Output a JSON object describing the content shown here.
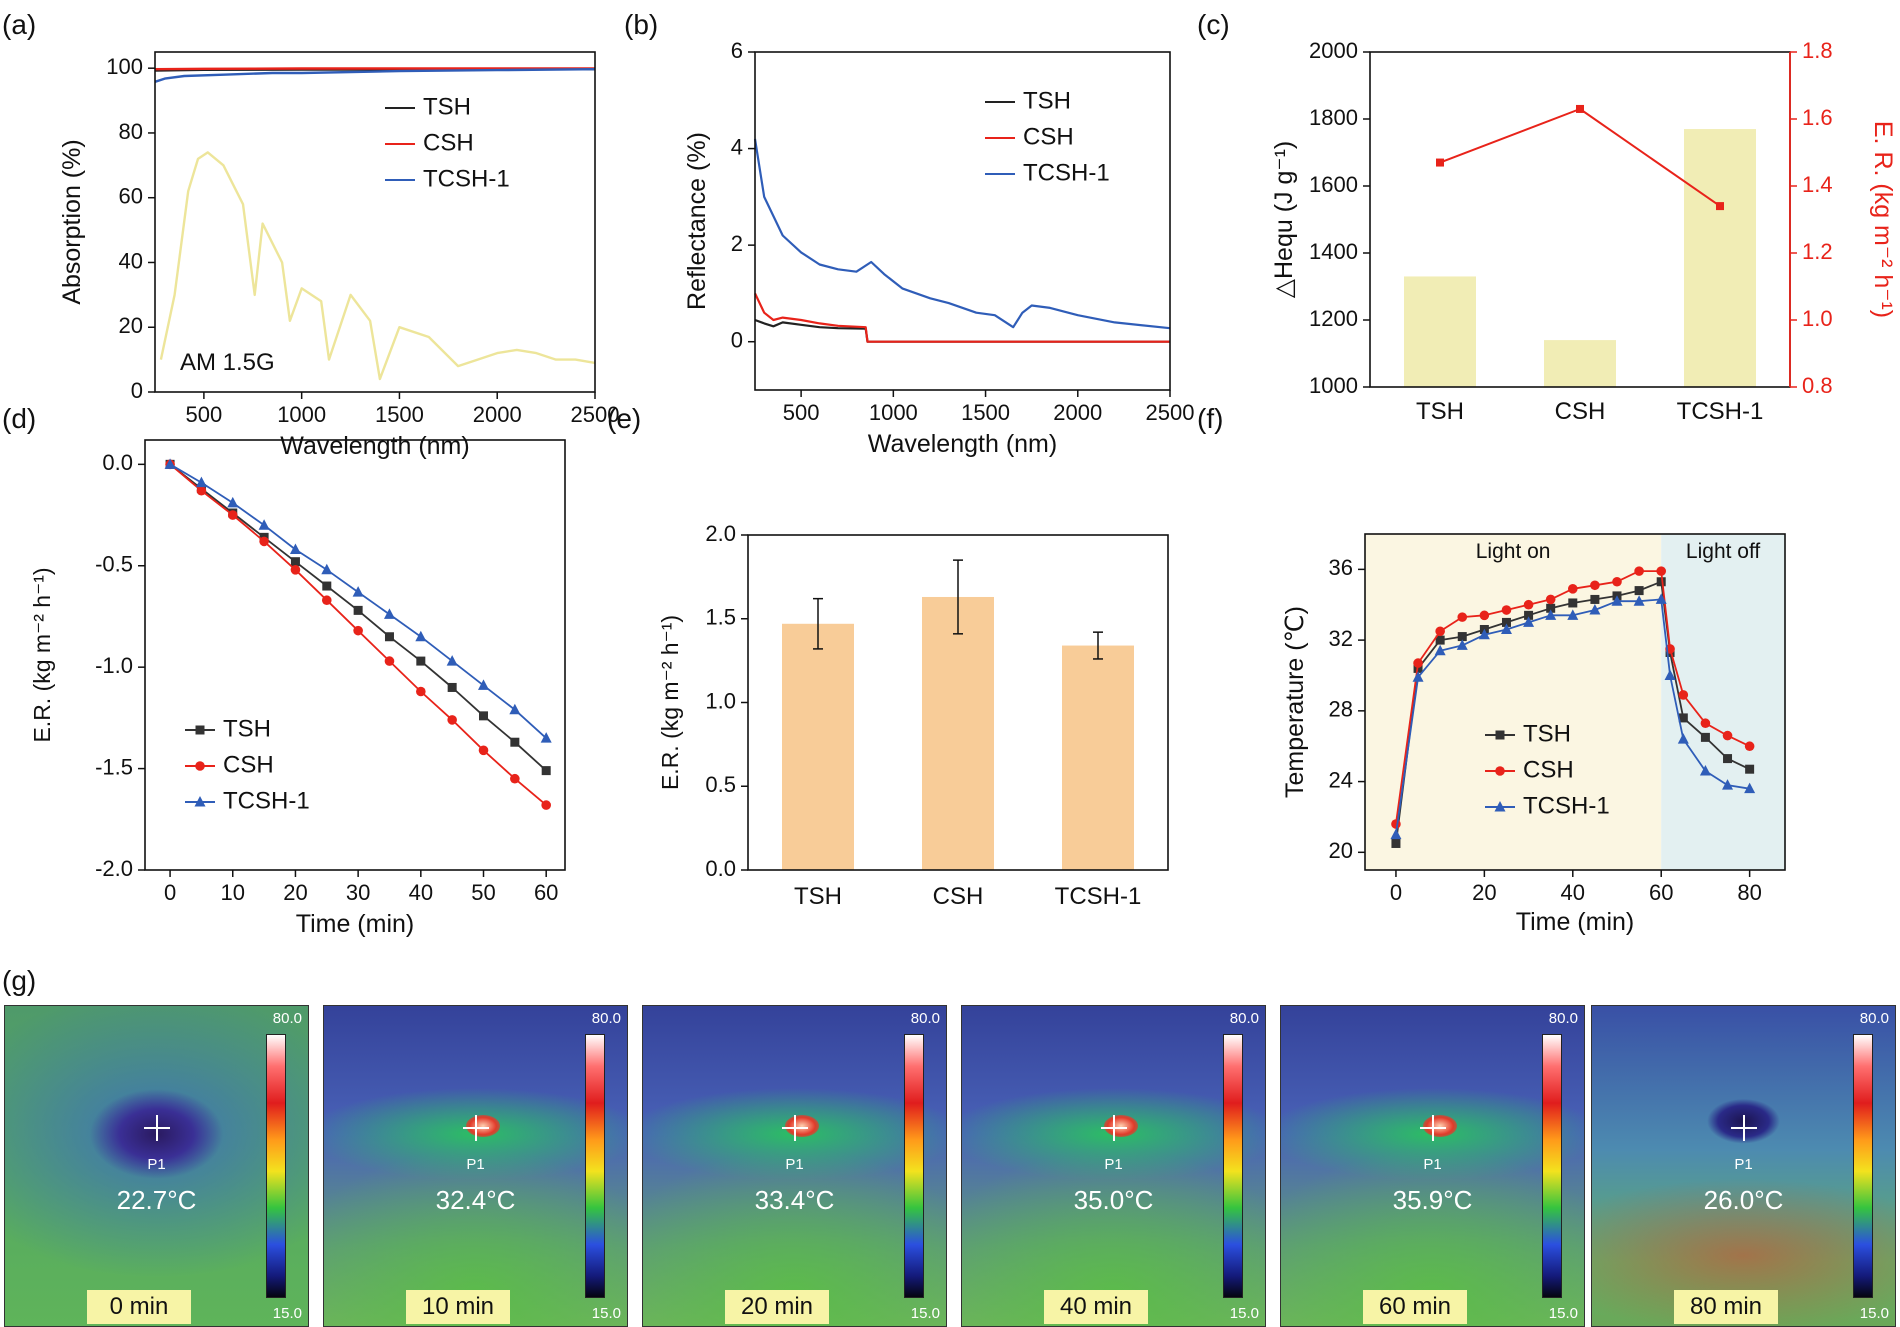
{
  "panel_labels": [
    "(a)",
    "(b)",
    "(c)",
    "(d)",
    "(e)",
    "(f)",
    "(g)"
  ],
  "chart_data": [
    {
      "panel": "(a)",
      "type": "line",
      "xlabel": "Wavelength (nm)",
      "ylabel": "Absorption (%)",
      "xlim": [
        250,
        2500
      ],
      "ylim": [
        0,
        105
      ],
      "xticks": [
        "500",
        "1000",
        "1500",
        "2000",
        "2500"
      ],
      "yticks": [
        "0",
        "20",
        "40",
        "60",
        "80",
        "100"
      ],
      "annotation": "AM 1.5G",
      "legend": [
        "TSH",
        "CSH",
        "TCSH-1"
      ],
      "series": [
        {
          "name": "TSH",
          "color": "#222222",
          "x": [
            250,
            500,
            1000,
            1500,
            2000,
            2500
          ],
          "y": [
            99.3,
            99.5,
            99.6,
            99.6,
            99.7,
            99.7
          ]
        },
        {
          "name": "CSH",
          "color": "#e8231a",
          "x": [
            250,
            500,
            1000,
            1500,
            2000,
            2500
          ],
          "y": [
            99.7,
            99.8,
            99.9,
            99.9,
            99.9,
            99.9
          ]
        },
        {
          "name": "TCSH-1",
          "color": "#2f5db8",
          "x": [
            250,
            300,
            400,
            600,
            850,
            1000,
            1500,
            2000,
            2500
          ],
          "y": [
            95.8,
            96.8,
            97.6,
            98.0,
            98.5,
            98.5,
            99.1,
            99.4,
            99.7
          ]
        },
        {
          "name": "AM 1.5G",
          "color": "#ede59a",
          "x": [
            280,
            350,
            420,
            470,
            520,
            600,
            700,
            760,
            800,
            900,
            940,
            1000,
            1100,
            1140,
            1250,
            1350,
            1400,
            1500,
            1650,
            1800,
            1900,
            2000,
            2100,
            2200,
            2300,
            2400,
            2500
          ],
          "y": [
            10,
            30,
            62,
            72,
            74,
            70,
            58,
            30,
            52,
            40,
            22,
            32,
            28,
            10,
            30,
            22,
            4,
            20,
            17,
            8,
            10,
            12,
            13,
            12,
            10,
            10,
            9
          ]
        }
      ]
    },
    {
      "panel": "(b)",
      "type": "line",
      "xlabel": "Wavelength (nm)",
      "ylabel": "Reflectance (%)",
      "xlim": [
        250,
        2500
      ],
      "ylim": [
        -1,
        6
      ],
      "xticks": [
        "500",
        "1000",
        "1500",
        "2000",
        "2500"
      ],
      "yticks": [
        "0",
        "2",
        "4",
        "6"
      ],
      "legend": [
        "TSH",
        "CSH",
        "TCSH-1"
      ],
      "series": [
        {
          "name": "TSH",
          "color": "#222222",
          "x": [
            250,
            300,
            350,
            400,
            500,
            600,
            700,
            850,
            860,
            1000,
            2500
          ],
          "y": [
            0.45,
            0.38,
            0.32,
            0.4,
            0.35,
            0.3,
            0.28,
            0.27,
            0.0,
            0.0,
            0.0
          ]
        },
        {
          "name": "CSH",
          "color": "#e8231a",
          "x": [
            250,
            300,
            350,
            400,
            500,
            600,
            700,
            850,
            860,
            1000,
            2500
          ],
          "y": [
            1.0,
            0.6,
            0.45,
            0.5,
            0.45,
            0.38,
            0.33,
            0.3,
            0.0,
            0.0,
            0.0
          ]
        },
        {
          "name": "TCSH-1",
          "color": "#2f5db8",
          "x": [
            250,
            300,
            400,
            500,
            600,
            700,
            800,
            880,
            950,
            1050,
            1200,
            1300,
            1450,
            1550,
            1650,
            1700,
            1750,
            1850,
            2000,
            2200,
            2500
          ],
          "y": [
            4.2,
            3.0,
            2.2,
            1.85,
            1.6,
            1.5,
            1.45,
            1.65,
            1.4,
            1.1,
            0.9,
            0.8,
            0.6,
            0.55,
            0.3,
            0.6,
            0.75,
            0.7,
            0.55,
            0.4,
            0.28
          ]
        }
      ]
    },
    {
      "panel": "(c)",
      "type": "bar",
      "categories": [
        "TSH",
        "CSH",
        "TCSH-1"
      ],
      "ylabel": "△Hequ (J g⁻¹)",
      "y2label": "E. R. (kg m⁻² h⁻¹)",
      "ylim": [
        1000,
        2000
      ],
      "y2lim": [
        0.8,
        1.8
      ],
      "yticks": [
        "1000",
        "1200",
        "1400",
        "1600",
        "1800",
        "2000"
      ],
      "y2ticks": [
        "0.8",
        "1.0",
        "1.2",
        "1.4",
        "1.6",
        "1.8"
      ],
      "series": [
        {
          "name": "△Hequ",
          "axis": "left",
          "type": "bar",
          "color": "#f1edb5",
          "values": [
            1330,
            1140,
            1770
          ]
        },
        {
          "name": "E. R.",
          "axis": "right",
          "type": "line",
          "color": "#e8231a",
          "values": [
            1.47,
            1.63,
            1.34
          ]
        }
      ]
    },
    {
      "panel": "(d)",
      "type": "line",
      "xlabel": "Time (min)",
      "ylabel": "E.R. (kg m⁻² h⁻¹)",
      "xlim": [
        -4,
        63
      ],
      "ylim": [
        -2.0,
        0.12
      ],
      "xticks": [
        "0",
        "10",
        "20",
        "30",
        "40",
        "50",
        "60"
      ],
      "yticks": [
        "0.0",
        "-0.5",
        "-1.0",
        "-1.5",
        "-2.0"
      ],
      "legend": [
        "TSH",
        "CSH",
        "TCSH-1"
      ],
      "x": [
        0,
        5,
        10,
        15,
        20,
        25,
        30,
        35,
        40,
        45,
        50,
        55,
        60
      ],
      "series": [
        {
          "name": "TSH",
          "color": "#333333",
          "marker": "square",
          "values": [
            0,
            -0.12,
            -0.24,
            -0.36,
            -0.48,
            -0.6,
            -0.72,
            -0.85,
            -0.97,
            -1.1,
            -1.24,
            -1.37,
            -1.51
          ]
        },
        {
          "name": "CSH",
          "color": "#e8231a",
          "marker": "circle",
          "values": [
            0,
            -0.13,
            -0.25,
            -0.38,
            -0.52,
            -0.67,
            -0.82,
            -0.97,
            -1.12,
            -1.26,
            -1.41,
            -1.55,
            -1.68
          ]
        },
        {
          "name": "TCSH-1",
          "color": "#2f5db8",
          "marker": "triangle",
          "values": [
            0,
            -0.09,
            -0.19,
            -0.3,
            -0.42,
            -0.52,
            -0.63,
            -0.74,
            -0.85,
            -0.97,
            -1.09,
            -1.21,
            -1.35
          ]
        }
      ]
    },
    {
      "panel": "(e)",
      "type": "bar",
      "categories": [
        "TSH",
        "CSH",
        "TCSH-1"
      ],
      "ylabel": "E.R. (kg m⁻² h⁻¹)",
      "ylim": [
        0,
        2.0
      ],
      "yticks": [
        "0.0",
        "0.5",
        "1.0",
        "1.5",
        "2.0"
      ],
      "values": [
        1.47,
        1.63,
        1.34
      ],
      "errors": [
        0.15,
        0.22,
        0.08
      ],
      "color": "#f8cc98"
    },
    {
      "panel": "(f)",
      "type": "line",
      "xlabel": "Time (min)",
      "ylabel": "Temperature (℃)",
      "xlim": [
        -7,
        88
      ],
      "ylim": [
        19,
        38
      ],
      "xticks": [
        "0",
        "20",
        "40",
        "60",
        "80"
      ],
      "yticks": [
        "20",
        "24",
        "28",
        "32",
        "36"
      ],
      "regions": [
        {
          "label": "Light on",
          "from": -7,
          "to": 60,
          "color": "#fbf6e2"
        },
        {
          "label": "Light off",
          "from": 60,
          "to": 88,
          "color": "#e3f0f1"
        }
      ],
      "legend": [
        "TSH",
        "CSH",
        "TCSH-1"
      ],
      "x": [
        0,
        5,
        10,
        15,
        20,
        25,
        30,
        35,
        40,
        45,
        50,
        55,
        60,
        62,
        65,
        70,
        75,
        80
      ],
      "series": [
        {
          "name": "TSH",
          "color": "#333333",
          "marker": "square",
          "values": [
            20.5,
            30.4,
            32.0,
            32.2,
            32.6,
            33.0,
            33.4,
            33.8,
            34.1,
            34.3,
            34.5,
            34.8,
            35.3,
            31.3,
            27.6,
            26.5,
            25.3,
            24.7
          ]
        },
        {
          "name": "CSH",
          "color": "#e8231a",
          "marker": "circle",
          "values": [
            21.6,
            30.7,
            32.5,
            33.3,
            33.4,
            33.7,
            34.0,
            34.3,
            34.9,
            35.1,
            35.3,
            35.9,
            35.9,
            31.5,
            28.9,
            27.3,
            26.6,
            26.0
          ]
        },
        {
          "name": "TCSH-1",
          "color": "#2f5db8",
          "marker": "triangle",
          "values": [
            21.0,
            29.9,
            31.4,
            31.7,
            32.3,
            32.6,
            33.0,
            33.4,
            33.4,
            33.7,
            34.2,
            34.2,
            34.3,
            30.0,
            26.4,
            24.6,
            23.8,
            23.6
          ]
        }
      ]
    }
  ],
  "thermal_images": {
    "scale_max": "80.0",
    "scale_min": "15.0",
    "point_label": "P1",
    "frames": [
      {
        "time": "0 min",
        "temp": "22.7°C"
      },
      {
        "time": "10 min",
        "temp": "32.4°C"
      },
      {
        "time": "20 min",
        "temp": "33.4°C"
      },
      {
        "time": "40 min",
        "temp": "35.0°C"
      },
      {
        "time": "60 min",
        "temp": "35.9°C"
      },
      {
        "time": "80 min",
        "temp": "26.0°C"
      }
    ]
  }
}
